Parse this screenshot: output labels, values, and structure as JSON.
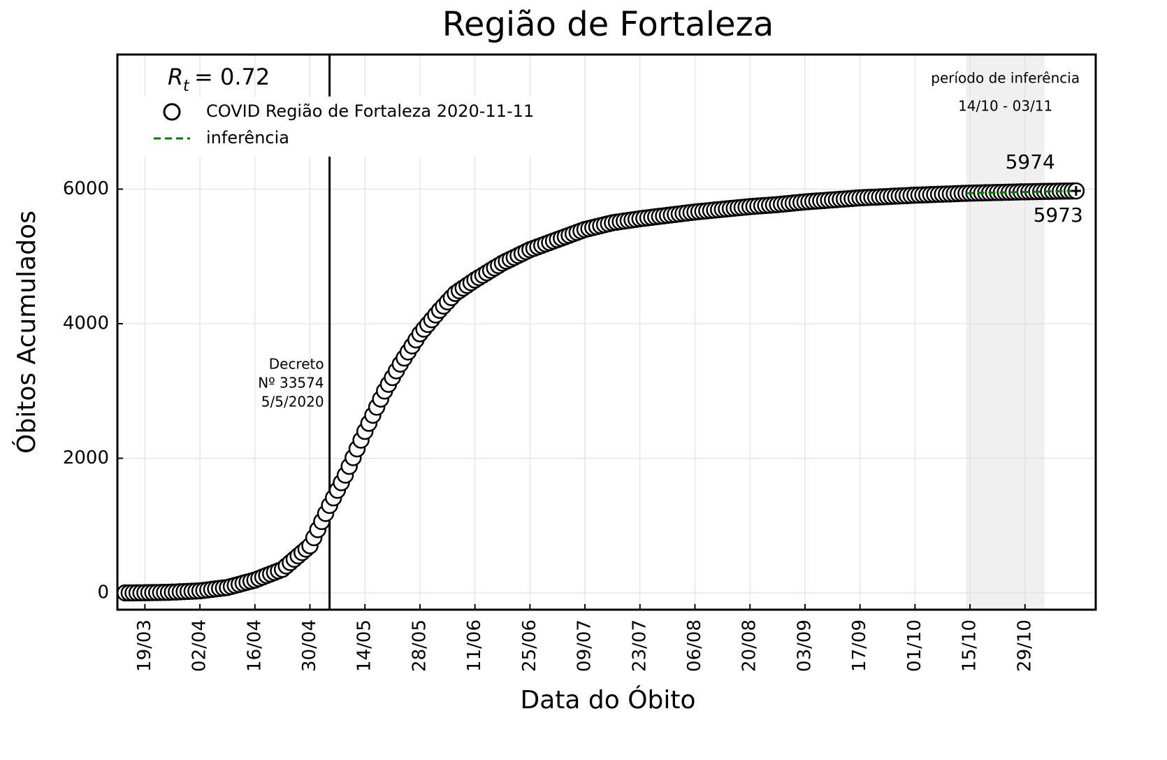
{
  "chart_data": {
    "type": "scatter",
    "title": "Região de Fortaleza",
    "x_label": "Data do Óbito",
    "y_label": "Óbitos Acumulados",
    "rt": {
      "symbol": "R",
      "subscript": "t",
      "text": "= 0.72"
    },
    "vline": {
      "x": "05/05",
      "label": [
        "Decreto",
        "Nº 33574",
        "5/5/2020"
      ]
    },
    "span": {
      "x": [
        "14/10",
        "03/11"
      ],
      "label": [
        "período de inferência",
        "14/10 - 03/11"
      ]
    },
    "xlim": [
      "12/03",
      "16/11"
    ],
    "xticks": [
      "19/03",
      "02/04",
      "16/04",
      "30/04",
      "14/05",
      "28/05",
      "11/06",
      "25/06",
      "09/07",
      "23/07",
      "06/08",
      "20/08",
      "03/09",
      "17/09",
      "01/10",
      "15/10",
      "29/10"
    ],
    "ylim": [
      -250,
      8000
    ],
    "yticks": [
      0,
      2000,
      4000,
      6000
    ],
    "grid": true,
    "legend": "upper left",
    "series": [
      {
        "name": "COVID Região de Fortaleza 2020-11-11",
        "color": "#000000",
        "x": [
          "14/03",
          "15/03",
          "16/03",
          "17/03",
          "18/03",
          "19/03",
          "20/03",
          "21/03",
          "22/03",
          "23/03",
          "24/03",
          "25/03",
          "26/03",
          "27/03",
          "28/03",
          "29/03",
          "30/03",
          "31/03",
          "01/04",
          "02/04",
          "03/04",
          "04/04",
          "05/04",
          "06/04",
          "07/04",
          "08/04",
          "09/04",
          "10/04",
          "11/04",
          "12/04",
          "13/04",
          "14/04",
          "15/04",
          "16/04",
          "17/04",
          "18/04",
          "19/04",
          "20/04",
          "21/04",
          "22/04",
          "23/04",
          "24/04",
          "25/04",
          "26/04",
          "27/04",
          "28/04",
          "29/04",
          "30/04",
          "01/05",
          "02/05",
          "03/05",
          "04/05",
          "05/05",
          "06/05",
          "07/05",
          "08/05",
          "09/05",
          "10/05",
          "11/05",
          "12/05",
          "13/05",
          "14/05",
          "15/05",
          "16/05",
          "17/05",
          "18/05",
          "19/05",
          "20/05",
          "21/05",
          "22/05",
          "23/05",
          "24/05",
          "25/05",
          "26/05",
          "27/05",
          "28/05",
          "29/05",
          "30/05",
          "31/05",
          "01/06",
          "02/06",
          "03/06",
          "04/06",
          "05/06",
          "06/06",
          "07/06",
          "08/06",
          "09/06",
          "10/06",
          "11/06",
          "12/06",
          "13/06",
          "14/06",
          "15/06",
          "16/06",
          "17/06",
          "18/06",
          "19/06",
          "20/06",
          "21/06",
          "22/06",
          "23/06",
          "24/06",
          "25/06",
          "26/06",
          "27/06",
          "28/06",
          "29/06",
          "30/06",
          "01/07",
          "02/07",
          "03/07",
          "04/07",
          "05/07",
          "06/07",
          "07/07",
          "08/07",
          "09/07",
          "10/07",
          "11/07",
          "12/07",
          "13/07",
          "14/07",
          "15/07",
          "16/07",
          "17/07",
          "18/07",
          "19/07",
          "20/07",
          "21/07",
          "22/07",
          "23/07",
          "24/07",
          "25/07",
          "26/07",
          "27/07",
          "28/07",
          "29/07",
          "30/07",
          "31/07",
          "01/08",
          "02/08",
          "03/08",
          "04/08",
          "05/08",
          "06/08",
          "07/08",
          "08/08",
          "09/08",
          "10/08",
          "11/08",
          "12/08",
          "13/08",
          "14/08",
          "15/08",
          "16/08",
          "17/08",
          "18/08",
          "19/08",
          "20/08",
          "21/08",
          "22/08",
          "23/08",
          "24/08",
          "25/08",
          "26/08",
          "27/08",
          "28/08",
          "29/08",
          "30/08",
          "31/08",
          "01/09",
          "02/09",
          "03/09",
          "04/09",
          "05/09",
          "06/09",
          "07/09",
          "08/09",
          "09/09",
          "10/09",
          "11/09",
          "12/09",
          "13/09",
          "14/09",
          "15/09",
          "16/09",
          "17/09",
          "18/09",
          "19/09",
          "20/09",
          "21/09",
          "22/09",
          "23/09",
          "24/09",
          "25/09",
          "26/09",
          "27/09",
          "28/09",
          "29/09",
          "30/09",
          "01/10",
          "02/10",
          "03/10",
          "04/10",
          "05/10",
          "06/10",
          "07/10",
          "08/10",
          "09/10",
          "10/10",
          "11/10",
          "12/10",
          "13/10",
          "14/10",
          "15/10",
          "16/10",
          "17/10",
          "18/10",
          "19/10",
          "20/10",
          "21/10",
          "22/10",
          "23/10",
          "24/10",
          "25/10",
          "26/10",
          "27/10",
          "28/10",
          "29/10",
          "30/10",
          "31/10",
          "01/11",
          "02/11",
          "03/11",
          "04/11",
          "05/11",
          "06/11",
          "07/11",
          "08/11",
          "09/11",
          "10/11",
          "11/11"
        ],
        "values": [
          0,
          0,
          0,
          1,
          1,
          2,
          3,
          4,
          5,
          6,
          7,
          8,
          11,
          13,
          16,
          19,
          22,
          24,
          27,
          30,
          37,
          44,
          51,
          59,
          66,
          73,
          80,
          96,
          111,
          127,
          143,
          159,
          174,
          190,
          213,
          236,
          259,
          281,
          304,
          327,
          350,
          400,
          450,
          500,
          550,
          600,
          650,
          700,
          820,
          940,
          1060,
          1180,
          1300,
          1412,
          1525,
          1638,
          1750,
          1880,
          2010,
          2140,
          2270,
          2400,
          2520,
          2640,
          2760,
          2880,
          3000,
          3100,
          3200,
          3300,
          3400,
          3490,
          3580,
          3670,
          3760,
          3850,
          3920,
          3990,
          4060,
          4130,
          4200,
          4262,
          4325,
          4388,
          4450,
          4490,
          4530,
          4570,
          4610,
          4650,
          4686,
          4721,
          4757,
          4793,
          4829,
          4864,
          4900,
          4929,
          4957,
          4986,
          5014,
          5043,
          5071,
          5100,
          5121,
          5143,
          5164,
          5186,
          5207,
          5229,
          5250,
          5271,
          5293,
          5314,
          5336,
          5357,
          5379,
          5400,
          5414,
          5429,
          5443,
          5457,
          5471,
          5486,
          5500,
          5509,
          5517,
          5526,
          5534,
          5543,
          5551,
          5560,
          5567,
          5574,
          5581,
          5589,
          5596,
          5603,
          5610,
          5617,
          5624,
          5631,
          5639,
          5646,
          5653,
          5660,
          5666,
          5671,
          5677,
          5683,
          5689,
          5694,
          5700,
          5706,
          5711,
          5717,
          5723,
          5729,
          5734,
          5740,
          5744,
          5749,
          5753,
          5757,
          5761,
          5766,
          5770,
          5776,
          5781,
          5787,
          5793,
          5799,
          5804,
          5810,
          5814,
          5819,
          5823,
          5827,
          5831,
          5836,
          5840,
          5844,
          5849,
          5853,
          5857,
          5861,
          5866,
          5870,
          5873,
          5876,
          5879,
          5881,
          5884,
          5887,
          5890,
          5893,
          5896,
          5899,
          5901,
          5904,
          5907,
          5910,
          5912,
          5914,
          5916,
          5919,
          5921,
          5923,
          5925,
          5927,
          5929,
          5931,
          5934,
          5936,
          5938,
          5940,
          5941,
          5943,
          5944,
          5946,
          5947,
          5949,
          5950,
          5951,
          5953,
          5954,
          5956,
          5957,
          5959,
          5960,
          5961,
          5962,
          5963,
          5965,
          5966,
          5967,
          5968,
          5969,
          5970,
          5971,
          5971,
          5972,
          5973
        ]
      },
      {
        "name": "inferência",
        "color": "#008000",
        "dashed": true,
        "x": [
          "14/10",
          "11/11"
        ],
        "values": [
          5939,
          5974
        ]
      }
    ]
  }
}
